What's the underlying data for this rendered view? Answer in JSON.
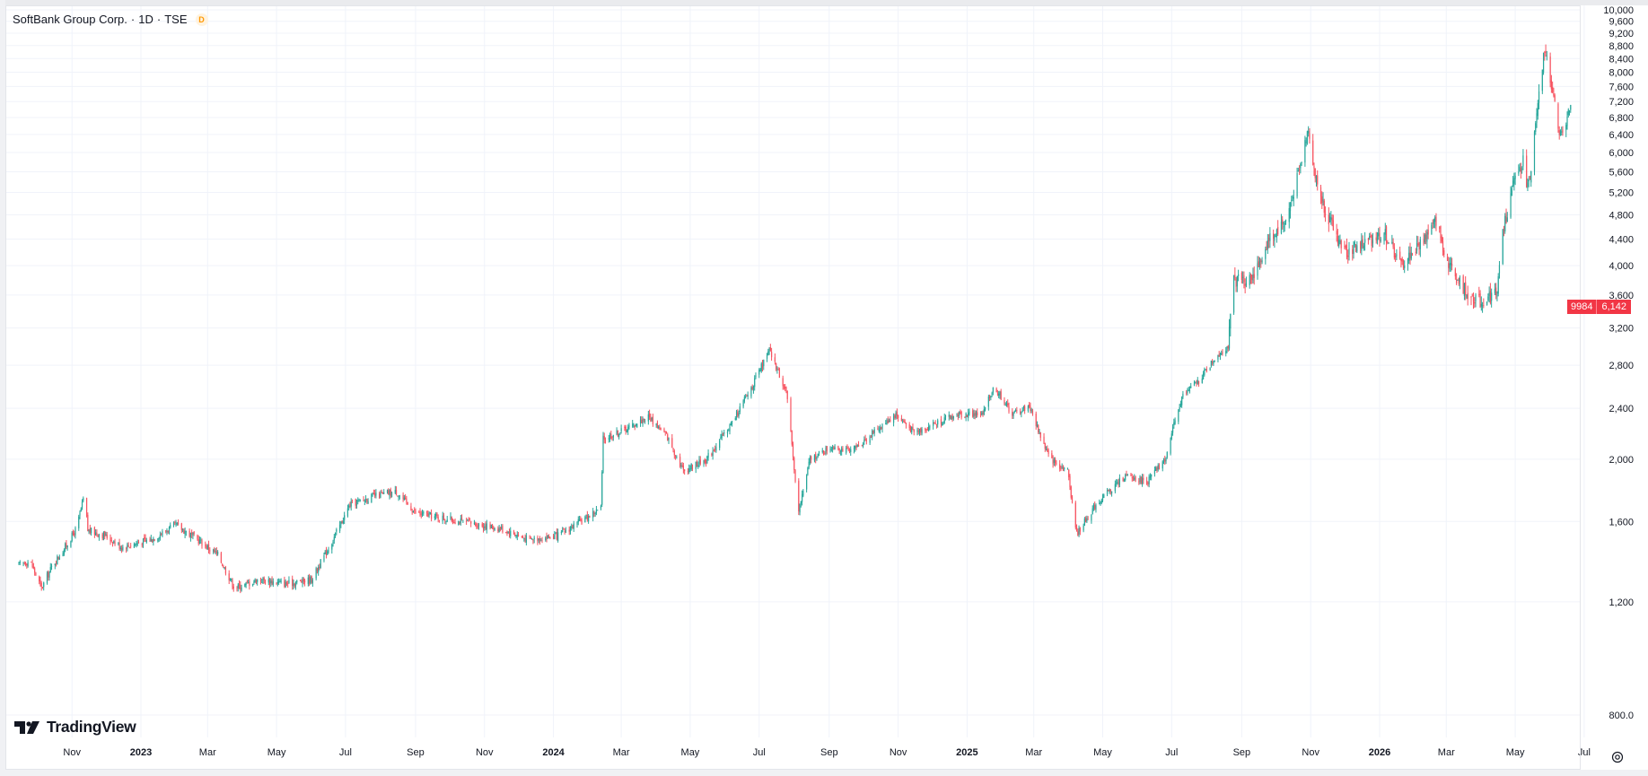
{
  "legend": {
    "symbol_name": "SoftBank Group Corp.",
    "interval": "1D",
    "exchange": "TSE",
    "type_badge": "D",
    "separator": "·"
  },
  "logo": {
    "text": "TradingView"
  },
  "last_price": {
    "ticker": "9984",
    "value": "6,142"
  },
  "icons": {
    "logo": "tradingview-logo-icon",
    "settings": "gear-icon"
  },
  "colors": {
    "up": "#26a69a",
    "down": "#f7525f",
    "grid": "#f0f3fa",
    "text": "#131722",
    "price_badge": "#f23645"
  },
  "chart_data": {
    "type": "candlestick",
    "title": "SoftBank Group Corp. · 1D · TSE",
    "y_axis": {
      "scale": "log",
      "range": [
        800,
        10000
      ],
      "ticks": [
        "10,000",
        "9,600",
        "9,200",
        "8,800",
        "8,400",
        "8,000",
        "7,600",
        "7,200",
        "6,800",
        "6,400",
        "6,000",
        "5,600",
        "5,200",
        "4,800",
        "4,400",
        "4,000",
        "3,600",
        "3,200",
        "2,800",
        "2,400",
        "2,000",
        "1,600",
        "1,200",
        "800.0"
      ],
      "position": "right"
    },
    "x_axis": {
      "range": [
        "2022-09-15",
        "2026-07-10"
      ],
      "ticks": [
        {
          "label": "Nov",
          "date": "2022-11-01"
        },
        {
          "label": "2023",
          "date": "2023-01-01"
        },
        {
          "label": "Mar",
          "date": "2023-03-01"
        },
        {
          "label": "May",
          "date": "2023-05-01"
        },
        {
          "label": "Jul",
          "date": "2023-07-01"
        },
        {
          "label": "Sep",
          "date": "2023-09-01"
        },
        {
          "label": "Nov",
          "date": "2023-11-01"
        },
        {
          "label": "2024",
          "date": "2024-01-01"
        },
        {
          "label": "Mar",
          "date": "2024-03-01"
        },
        {
          "label": "May",
          "date": "2024-05-01"
        },
        {
          "label": "Jul",
          "date": "2024-07-01"
        },
        {
          "label": "Sep",
          "date": "2024-09-01"
        },
        {
          "label": "Nov",
          "date": "2024-11-01"
        },
        {
          "label": "2025",
          "date": "2025-01-01"
        },
        {
          "label": "Mar",
          "date": "2025-03-01"
        },
        {
          "label": "May",
          "date": "2025-05-01"
        },
        {
          "label": "Jul",
          "date": "2025-07-01"
        },
        {
          "label": "Sep",
          "date": "2025-09-01"
        },
        {
          "label": "Nov",
          "date": "2025-11-01"
        },
        {
          "label": "2026",
          "date": "2026-01-01"
        },
        {
          "label": "Mar",
          "date": "2026-03-01"
        },
        {
          "label": "May",
          "date": "2026-05-01"
        },
        {
          "label": "Jul",
          "date": "2026-07-01"
        }
      ]
    },
    "grid": true,
    "series": [
      {
        "name": "9984",
        "close_path": [
          [
            "2022-09-15",
            1370
          ],
          [
            "2022-09-25",
            1390
          ],
          [
            "2022-10-05",
            1260
          ],
          [
            "2022-10-15",
            1370
          ],
          [
            "2022-10-25",
            1450
          ],
          [
            "2022-11-05",
            1560
          ],
          [
            "2022-11-12",
            1760
          ],
          [
            "2022-11-15",
            1550
          ],
          [
            "2022-12-01",
            1520
          ],
          [
            "2022-12-15",
            1460
          ],
          [
            "2023-01-10",
            1500
          ],
          [
            "2023-02-01",
            1580
          ],
          [
            "2023-02-20",
            1500
          ],
          [
            "2023-03-10",
            1420
          ],
          [
            "2023-03-25",
            1260
          ],
          [
            "2023-04-15",
            1300
          ],
          [
            "2023-05-10",
            1280
          ],
          [
            "2023-06-01",
            1300
          ],
          [
            "2023-06-20",
            1500
          ],
          [
            "2023-07-05",
            1700
          ],
          [
            "2023-07-25",
            1750
          ],
          [
            "2023-08-15",
            1780
          ],
          [
            "2023-09-01",
            1650
          ],
          [
            "2023-09-25",
            1620
          ],
          [
            "2023-10-20",
            1590
          ],
          [
            "2023-11-15",
            1560
          ],
          [
            "2023-12-10",
            1500
          ],
          [
            "2024-01-05",
            1520
          ],
          [
            "2024-02-01",
            1630
          ],
          [
            "2024-02-12",
            1680
          ],
          [
            "2024-02-14",
            2150
          ],
          [
            "2024-03-10",
            2250
          ],
          [
            "2024-03-25",
            2330
          ],
          [
            "2024-04-10",
            2180
          ],
          [
            "2024-04-25",
            1920
          ],
          [
            "2024-05-15",
            2000
          ],
          [
            "2024-06-05",
            2250
          ],
          [
            "2024-06-25",
            2600
          ],
          [
            "2024-07-10",
            2950
          ],
          [
            "2024-07-25",
            2550
          ],
          [
            "2024-08-05",
            1660
          ],
          [
            "2024-08-15",
            2000
          ],
          [
            "2024-09-05",
            2100
          ],
          [
            "2024-09-20",
            2050
          ],
          [
            "2024-10-10",
            2200
          ],
          [
            "2024-10-30",
            2350
          ],
          [
            "2024-11-15",
            2200
          ],
          [
            "2024-12-10",
            2300
          ],
          [
            "2024-12-25",
            2350
          ],
          [
            "2025-01-15",
            2350
          ],
          [
            "2025-01-25",
            2600
          ],
          [
            "2025-02-10",
            2350
          ],
          [
            "2025-02-25",
            2420
          ],
          [
            "2025-03-15",
            2000
          ],
          [
            "2025-03-31",
            1920
          ],
          [
            "2025-04-08",
            1530
          ],
          [
            "2025-04-25",
            1700
          ],
          [
            "2025-05-20",
            1880
          ],
          [
            "2025-06-10",
            1850
          ],
          [
            "2025-06-25",
            2000
          ],
          [
            "2025-07-10",
            2500
          ],
          [
            "2025-07-25",
            2650
          ],
          [
            "2025-08-10",
            2900
          ],
          [
            "2025-08-20",
            3000
          ],
          [
            "2025-08-25",
            3800
          ],
          [
            "2025-09-05",
            3800
          ],
          [
            "2025-09-15",
            3950
          ],
          [
            "2025-09-25",
            4400
          ],
          [
            "2025-10-10",
            4700
          ],
          [
            "2025-10-22",
            5600
          ],
          [
            "2025-10-30",
            6600
          ],
          [
            "2025-11-05",
            5500
          ],
          [
            "2025-11-12",
            5000
          ],
          [
            "2025-11-20",
            4600
          ],
          [
            "2025-12-01",
            4200
          ],
          [
            "2025-12-15",
            4300
          ],
          [
            "2026-01-05",
            4500
          ],
          [
            "2026-01-20",
            4000
          ],
          [
            "2026-02-05",
            4300
          ],
          [
            "2026-02-20",
            4700
          ],
          [
            "2026-03-01",
            4100
          ],
          [
            "2026-03-15",
            3700
          ],
          [
            "2026-04-01",
            3500
          ],
          [
            "2026-04-15",
            3650
          ],
          [
            "2026-04-20",
            4500
          ],
          [
            "2026-05-01",
            5500
          ],
          [
            "2026-05-08",
            5800
          ],
          [
            "2026-05-12",
            5300
          ],
          [
            "2026-05-15",
            5700
          ],
          [
            "2026-05-20",
            6800
          ],
          [
            "2026-05-27",
            8700
          ],
          [
            "2026-06-03",
            7500
          ],
          [
            "2026-06-10",
            6400
          ],
          [
            "2026-06-20",
            7100
          ],
          [
            "2026-06-28",
            6400
          ],
          [
            "2026-07-01",
            6142
          ]
        ]
      }
    ]
  }
}
